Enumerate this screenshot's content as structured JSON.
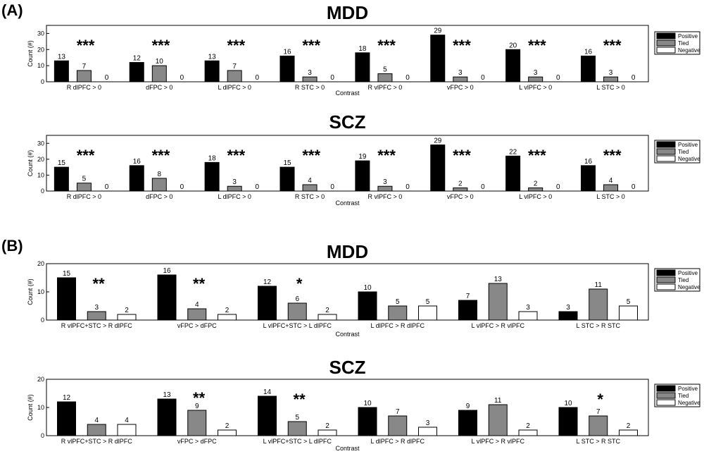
{
  "panels": [
    {
      "label": "(A)"
    },
    {
      "label": "(B)"
    }
  ],
  "colors": {
    "positive": "#000000",
    "tied": "#888888",
    "negative": "#ffffff"
  },
  "chart_data": [
    {
      "type": "bar",
      "panel": "(A)",
      "title": "MDD",
      "xlabel": "Contrast",
      "ylabel": "Count (#)",
      "ylim": [
        0,
        35
      ],
      "yticks": [
        0,
        10,
        20,
        30
      ],
      "categories": [
        "R dlPFC > 0",
        "dFPC > 0",
        "L dlPFC > 0",
        "R STC > 0",
        "R vlPFC > 0",
        "vFPC > 0",
        "L vlPFC > 0",
        "L STC > 0"
      ],
      "series": [
        {
          "name": "Positive",
          "values": [
            13,
            12,
            13,
            16,
            18,
            29,
            20,
            16
          ]
        },
        {
          "name": "Tied",
          "values": [
            7,
            10,
            7,
            3,
            5,
            3,
            3,
            3
          ]
        },
        {
          "name": "Negative",
          "values": [
            0,
            0,
            0,
            0,
            0,
            0,
            0,
            0
          ]
        }
      ],
      "significance": [
        "***",
        "***",
        "***",
        "***",
        "***",
        "***",
        "***",
        "***"
      ],
      "legend": "right"
    },
    {
      "type": "bar",
      "panel": "(A)",
      "title": "SCZ",
      "xlabel": "Contrast",
      "ylabel": "Count (#)",
      "ylim": [
        0,
        35
      ],
      "yticks": [
        0,
        10,
        20,
        30
      ],
      "categories": [
        "R dlPFC > 0",
        "dFPC > 0",
        "L dlPFC > 0",
        "R STC > 0",
        "R vlPFC > 0",
        "vFPC > 0",
        "L vlPFC > 0",
        "L STC > 0"
      ],
      "series": [
        {
          "name": "Positive",
          "values": [
            15,
            16,
            18,
            15,
            19,
            29,
            22,
            16
          ]
        },
        {
          "name": "Tied",
          "values": [
            5,
            8,
            3,
            4,
            3,
            2,
            2,
            4
          ]
        },
        {
          "name": "Negative",
          "values": [
            0,
            0,
            0,
            0,
            0,
            0,
            0,
            0
          ]
        }
      ],
      "significance": [
        "***",
        "***",
        "***",
        "***",
        "***",
        "***",
        "***",
        "***"
      ],
      "legend": "right"
    },
    {
      "type": "bar",
      "panel": "(B)",
      "title": "MDD",
      "xlabel": "Contrast",
      "ylabel": "Count (#)",
      "ylim": [
        0,
        20
      ],
      "yticks": [
        0,
        10,
        20
      ],
      "categories": [
        "R vlPFC+STC > R dlPFC",
        "vFPC > dFPC",
        "L vlPFC+STC > L dlPFC",
        "L dlPFC > R dlPFC",
        "L vlPFC > R vlPFC",
        "L STC > R STC"
      ],
      "series": [
        {
          "name": "Positive",
          "values": [
            15,
            16,
            12,
            10,
            7,
            3
          ]
        },
        {
          "name": "Tied",
          "values": [
            3,
            4,
            6,
            5,
            13,
            11
          ]
        },
        {
          "name": "Negative",
          "values": [
            2,
            2,
            2,
            5,
            3,
            5
          ]
        }
      ],
      "significance": [
        "**",
        "**",
        "*",
        "",
        "",
        ""
      ],
      "legend": "right"
    },
    {
      "type": "bar",
      "panel": "(B)",
      "title": "SCZ",
      "xlabel": "Contrast",
      "ylabel": "Count (#)",
      "ylim": [
        0,
        20
      ],
      "yticks": [
        0,
        10,
        20
      ],
      "categories": [
        "R vlPFC+STC > R dlPFC",
        "vFPC > dFPC",
        "L vlPFC+STC > L dlPFC",
        "L dlPFC > R dlPFC",
        "L vlPFC > R vlPFC",
        "L STC > R STC"
      ],
      "series": [
        {
          "name": "Positive",
          "values": [
            12,
            13,
            14,
            10,
            9,
            10
          ]
        },
        {
          "name": "Tied",
          "values": [
            4,
            9,
            5,
            7,
            11,
            7
          ]
        },
        {
          "name": "Negative",
          "values": [
            4,
            2,
            2,
            3,
            2,
            2
          ]
        }
      ],
      "significance": [
        "",
        "**",
        "**",
        "",
        "",
        "*"
      ],
      "legend": "right"
    }
  ]
}
